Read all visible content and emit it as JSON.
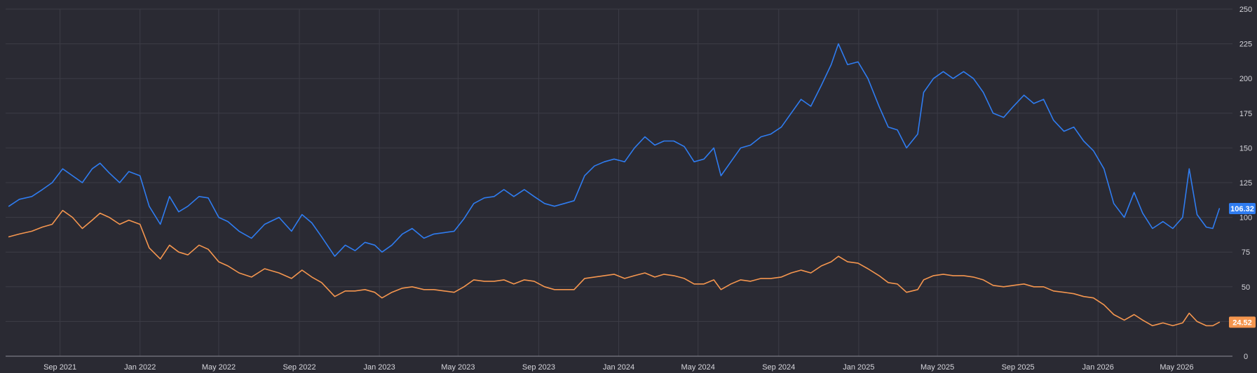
{
  "chart_data": {
    "type": "line",
    "grid": true,
    "theme": "dark",
    "legend": "none",
    "y_range": [
      0,
      250
    ],
    "y_ticks": [
      "0",
      "25",
      "50",
      "75",
      "100",
      "125",
      "150",
      "175",
      "200",
      "225",
      "250"
    ],
    "x_range": [
      "2021-06-10",
      "2026-07-25"
    ],
    "x_ticks": [
      {
        "date": "2021-09-01",
        "label": "Sep 2021"
      },
      {
        "date": "2022-01-01",
        "label": "Jan 2022"
      },
      {
        "date": "2022-05-01",
        "label": "May 2022"
      },
      {
        "date": "2022-09-01",
        "label": "Sep 2022"
      },
      {
        "date": "2023-01-01",
        "label": "Jan 2023"
      },
      {
        "date": "2023-05-01",
        "label": "May 2023"
      },
      {
        "date": "2023-09-01",
        "label": "Sep 2023"
      },
      {
        "date": "2024-01-01",
        "label": "Jan 2024"
      },
      {
        "date": "2024-05-01",
        "label": "May 2024"
      },
      {
        "date": "2024-09-01",
        "label": "Sep 2024"
      },
      {
        "date": "2025-01-01",
        "label": "Jan 2025"
      },
      {
        "date": "2025-05-01",
        "label": "May 2025"
      },
      {
        "date": "2025-09-01",
        "label": "Sep 2025"
      },
      {
        "date": "2026-01-01",
        "label": "Jan 2026"
      },
      {
        "date": "2026-05-01",
        "label": "May 2026"
      }
    ],
    "series": [
      {
        "color": "#2f7cf0",
        "last_value_label": "106.32",
        "points": [
          [
            "2021-06-15",
            108
          ],
          [
            "2021-07-01",
            113
          ],
          [
            "2021-07-20",
            115
          ],
          [
            "2021-08-05",
            120
          ],
          [
            "2021-08-20",
            125
          ],
          [
            "2021-09-05",
            135
          ],
          [
            "2021-09-20",
            130
          ],
          [
            "2021-10-05",
            125
          ],
          [
            "2021-10-20",
            135
          ],
          [
            "2021-11-01",
            139
          ],
          [
            "2021-11-15",
            132
          ],
          [
            "2021-12-01",
            125
          ],
          [
            "2021-12-15",
            133
          ],
          [
            "2022-01-01",
            130
          ],
          [
            "2022-01-15",
            108
          ],
          [
            "2022-02-01",
            95
          ],
          [
            "2022-02-15",
            115
          ],
          [
            "2022-03-01",
            104
          ],
          [
            "2022-03-15",
            108
          ],
          [
            "2022-04-01",
            115
          ],
          [
            "2022-04-15",
            114
          ],
          [
            "2022-05-01",
            100
          ],
          [
            "2022-05-15",
            97
          ],
          [
            "2022-06-01",
            90
          ],
          [
            "2022-06-20",
            85
          ],
          [
            "2022-07-10",
            95
          ],
          [
            "2022-08-01",
            100
          ],
          [
            "2022-08-20",
            90
          ],
          [
            "2022-09-05",
            102
          ],
          [
            "2022-09-20",
            96
          ],
          [
            "2022-10-05",
            86
          ],
          [
            "2022-10-25",
            72
          ],
          [
            "2022-11-10",
            80
          ],
          [
            "2022-11-25",
            76
          ],
          [
            "2022-12-10",
            82
          ],
          [
            "2022-12-25",
            80
          ],
          [
            "2023-01-05",
            75
          ],
          [
            "2023-01-20",
            80
          ],
          [
            "2023-02-05",
            88
          ],
          [
            "2023-02-20",
            92
          ],
          [
            "2023-03-10",
            85
          ],
          [
            "2023-03-25",
            88
          ],
          [
            "2023-04-10",
            89
          ],
          [
            "2023-04-25",
            90
          ],
          [
            "2023-05-10",
            99
          ],
          [
            "2023-05-25",
            110
          ],
          [
            "2023-06-10",
            114
          ],
          [
            "2023-06-25",
            115
          ],
          [
            "2023-07-10",
            120
          ],
          [
            "2023-07-25",
            115
          ],
          [
            "2023-08-10",
            120
          ],
          [
            "2023-08-25",
            115
          ],
          [
            "2023-09-10",
            110
          ],
          [
            "2023-09-25",
            108
          ],
          [
            "2023-10-10",
            110
          ],
          [
            "2023-10-25",
            112
          ],
          [
            "2023-11-10",
            130
          ],
          [
            "2023-11-25",
            137
          ],
          [
            "2023-12-10",
            140
          ],
          [
            "2023-12-25",
            142
          ],
          [
            "2024-01-10",
            140
          ],
          [
            "2024-01-25",
            150
          ],
          [
            "2024-02-10",
            158
          ],
          [
            "2024-02-25",
            152
          ],
          [
            "2024-03-10",
            155
          ],
          [
            "2024-03-25",
            155
          ],
          [
            "2024-04-10",
            151
          ],
          [
            "2024-04-25",
            140
          ],
          [
            "2024-05-10",
            142
          ],
          [
            "2024-05-25",
            150
          ],
          [
            "2024-06-05",
            130
          ],
          [
            "2024-06-20",
            140
          ],
          [
            "2024-07-05",
            150
          ],
          [
            "2024-07-20",
            152
          ],
          [
            "2024-08-05",
            158
          ],
          [
            "2024-08-20",
            160
          ],
          [
            "2024-09-05",
            165
          ],
          [
            "2024-09-20",
            175
          ],
          [
            "2024-10-05",
            185
          ],
          [
            "2024-10-20",
            180
          ],
          [
            "2024-11-05",
            195
          ],
          [
            "2024-11-20",
            210
          ],
          [
            "2024-12-01",
            225
          ],
          [
            "2024-12-15",
            210
          ],
          [
            "2024-12-31",
            212
          ],
          [
            "2025-01-15",
            200
          ],
          [
            "2025-02-01",
            180
          ],
          [
            "2025-02-15",
            165
          ],
          [
            "2025-03-01",
            163
          ],
          [
            "2025-03-15",
            150
          ],
          [
            "2025-04-01",
            160
          ],
          [
            "2025-04-10",
            190
          ],
          [
            "2025-04-25",
            200
          ],
          [
            "2025-05-10",
            205
          ],
          [
            "2025-05-25",
            200
          ],
          [
            "2025-06-10",
            205
          ],
          [
            "2025-06-25",
            200
          ],
          [
            "2025-07-10",
            190
          ],
          [
            "2025-07-25",
            175
          ],
          [
            "2025-08-10",
            172
          ],
          [
            "2025-08-25",
            180
          ],
          [
            "2025-09-10",
            188
          ],
          [
            "2025-09-25",
            182
          ],
          [
            "2025-10-10",
            185
          ],
          [
            "2025-10-25",
            170
          ],
          [
            "2025-11-10",
            162
          ],
          [
            "2025-11-25",
            165
          ],
          [
            "2025-12-10",
            155
          ],
          [
            "2025-12-25",
            148
          ],
          [
            "2026-01-10",
            135
          ],
          [
            "2026-01-25",
            110
          ],
          [
            "2026-02-10",
            100
          ],
          [
            "2026-02-25",
            118
          ],
          [
            "2026-03-10",
            103
          ],
          [
            "2026-03-25",
            92
          ],
          [
            "2026-04-10",
            97
          ],
          [
            "2026-04-25",
            92
          ],
          [
            "2026-05-10",
            100
          ],
          [
            "2026-05-20",
            135
          ],
          [
            "2026-06-01",
            102
          ],
          [
            "2026-06-15",
            93
          ],
          [
            "2026-06-25",
            92
          ],
          [
            "2026-07-05",
            106.32
          ]
        ]
      },
      {
        "color": "#f5964f",
        "last_value_label": "24.52",
        "points": [
          [
            "2021-06-15",
            86
          ],
          [
            "2021-07-01",
            88
          ],
          [
            "2021-07-20",
            90
          ],
          [
            "2021-08-05",
            93
          ],
          [
            "2021-08-20",
            95
          ],
          [
            "2021-09-05",
            105
          ],
          [
            "2021-09-20",
            100
          ],
          [
            "2021-10-05",
            92
          ],
          [
            "2021-10-20",
            98
          ],
          [
            "2021-11-01",
            103
          ],
          [
            "2021-11-15",
            100
          ],
          [
            "2021-12-01",
            95
          ],
          [
            "2021-12-15",
            98
          ],
          [
            "2022-01-01",
            95
          ],
          [
            "2022-01-15",
            78
          ],
          [
            "2022-02-01",
            70
          ],
          [
            "2022-02-15",
            80
          ],
          [
            "2022-03-01",
            75
          ],
          [
            "2022-03-15",
            73
          ],
          [
            "2022-04-01",
            80
          ],
          [
            "2022-04-15",
            77
          ],
          [
            "2022-05-01",
            68
          ],
          [
            "2022-05-15",
            65
          ],
          [
            "2022-06-01",
            60
          ],
          [
            "2022-06-20",
            57
          ],
          [
            "2022-07-10",
            63
          ],
          [
            "2022-08-01",
            60
          ],
          [
            "2022-08-20",
            56
          ],
          [
            "2022-09-05",
            62
          ],
          [
            "2022-09-20",
            57
          ],
          [
            "2022-10-05",
            53
          ],
          [
            "2022-10-25",
            43
          ],
          [
            "2022-11-10",
            47
          ],
          [
            "2022-11-25",
            47
          ],
          [
            "2022-12-10",
            48
          ],
          [
            "2022-12-25",
            46
          ],
          [
            "2023-01-05",
            42
          ],
          [
            "2023-01-20",
            46
          ],
          [
            "2023-02-05",
            49
          ],
          [
            "2023-02-20",
            50
          ],
          [
            "2023-03-10",
            48
          ],
          [
            "2023-03-25",
            48
          ],
          [
            "2023-04-10",
            47
          ],
          [
            "2023-04-25",
            46
          ],
          [
            "2023-05-10",
            50
          ],
          [
            "2023-05-25",
            55
          ],
          [
            "2023-06-10",
            54
          ],
          [
            "2023-06-25",
            54
          ],
          [
            "2023-07-10",
            55
          ],
          [
            "2023-07-25",
            52
          ],
          [
            "2023-08-10",
            55
          ],
          [
            "2023-08-25",
            54
          ],
          [
            "2023-09-10",
            50
          ],
          [
            "2023-09-25",
            48
          ],
          [
            "2023-10-10",
            48
          ],
          [
            "2023-10-25",
            48
          ],
          [
            "2023-11-10",
            56
          ],
          [
            "2023-11-25",
            57
          ],
          [
            "2023-12-10",
            58
          ],
          [
            "2023-12-25",
            59
          ],
          [
            "2024-01-10",
            56
          ],
          [
            "2024-01-25",
            58
          ],
          [
            "2024-02-10",
            60
          ],
          [
            "2024-02-25",
            57
          ],
          [
            "2024-03-10",
            59
          ],
          [
            "2024-03-25",
            58
          ],
          [
            "2024-04-10",
            56
          ],
          [
            "2024-04-25",
            52
          ],
          [
            "2024-05-10",
            52
          ],
          [
            "2024-05-25",
            55
          ],
          [
            "2024-06-05",
            48
          ],
          [
            "2024-06-20",
            52
          ],
          [
            "2024-07-05",
            55
          ],
          [
            "2024-07-20",
            54
          ],
          [
            "2024-08-05",
            56
          ],
          [
            "2024-08-20",
            56
          ],
          [
            "2024-09-05",
            57
          ],
          [
            "2024-09-20",
            60
          ],
          [
            "2024-10-05",
            62
          ],
          [
            "2024-10-20",
            60
          ],
          [
            "2024-11-05",
            65
          ],
          [
            "2024-11-20",
            68
          ],
          [
            "2024-12-01",
            72
          ],
          [
            "2024-12-15",
            68
          ],
          [
            "2024-12-31",
            67
          ],
          [
            "2025-01-15",
            63
          ],
          [
            "2025-02-01",
            58
          ],
          [
            "2025-02-15",
            53
          ],
          [
            "2025-03-01",
            52
          ],
          [
            "2025-03-15",
            46
          ],
          [
            "2025-04-01",
            48
          ],
          [
            "2025-04-10",
            55
          ],
          [
            "2025-04-25",
            58
          ],
          [
            "2025-05-10",
            59
          ],
          [
            "2025-05-25",
            58
          ],
          [
            "2025-06-10",
            58
          ],
          [
            "2025-06-25",
            57
          ],
          [
            "2025-07-10",
            55
          ],
          [
            "2025-07-25",
            51
          ],
          [
            "2025-08-10",
            50
          ],
          [
            "2025-08-25",
            51
          ],
          [
            "2025-09-10",
            52
          ],
          [
            "2025-09-25",
            50
          ],
          [
            "2025-10-10",
            50
          ],
          [
            "2025-10-25",
            47
          ],
          [
            "2025-11-10",
            46
          ],
          [
            "2025-11-25",
            45
          ],
          [
            "2025-12-10",
            43
          ],
          [
            "2025-12-25",
            42
          ],
          [
            "2026-01-10",
            37
          ],
          [
            "2026-01-25",
            30
          ],
          [
            "2026-02-10",
            26
          ],
          [
            "2026-02-25",
            30
          ],
          [
            "2026-03-10",
            26
          ],
          [
            "2026-03-25",
            22
          ],
          [
            "2026-04-10",
            24
          ],
          [
            "2026-04-25",
            22
          ],
          [
            "2026-05-10",
            24
          ],
          [
            "2026-05-20",
            31
          ],
          [
            "2026-06-01",
            25
          ],
          [
            "2026-06-15",
            22
          ],
          [
            "2026-06-25",
            22
          ],
          [
            "2026-07-05",
            24.52
          ]
        ]
      }
    ]
  }
}
